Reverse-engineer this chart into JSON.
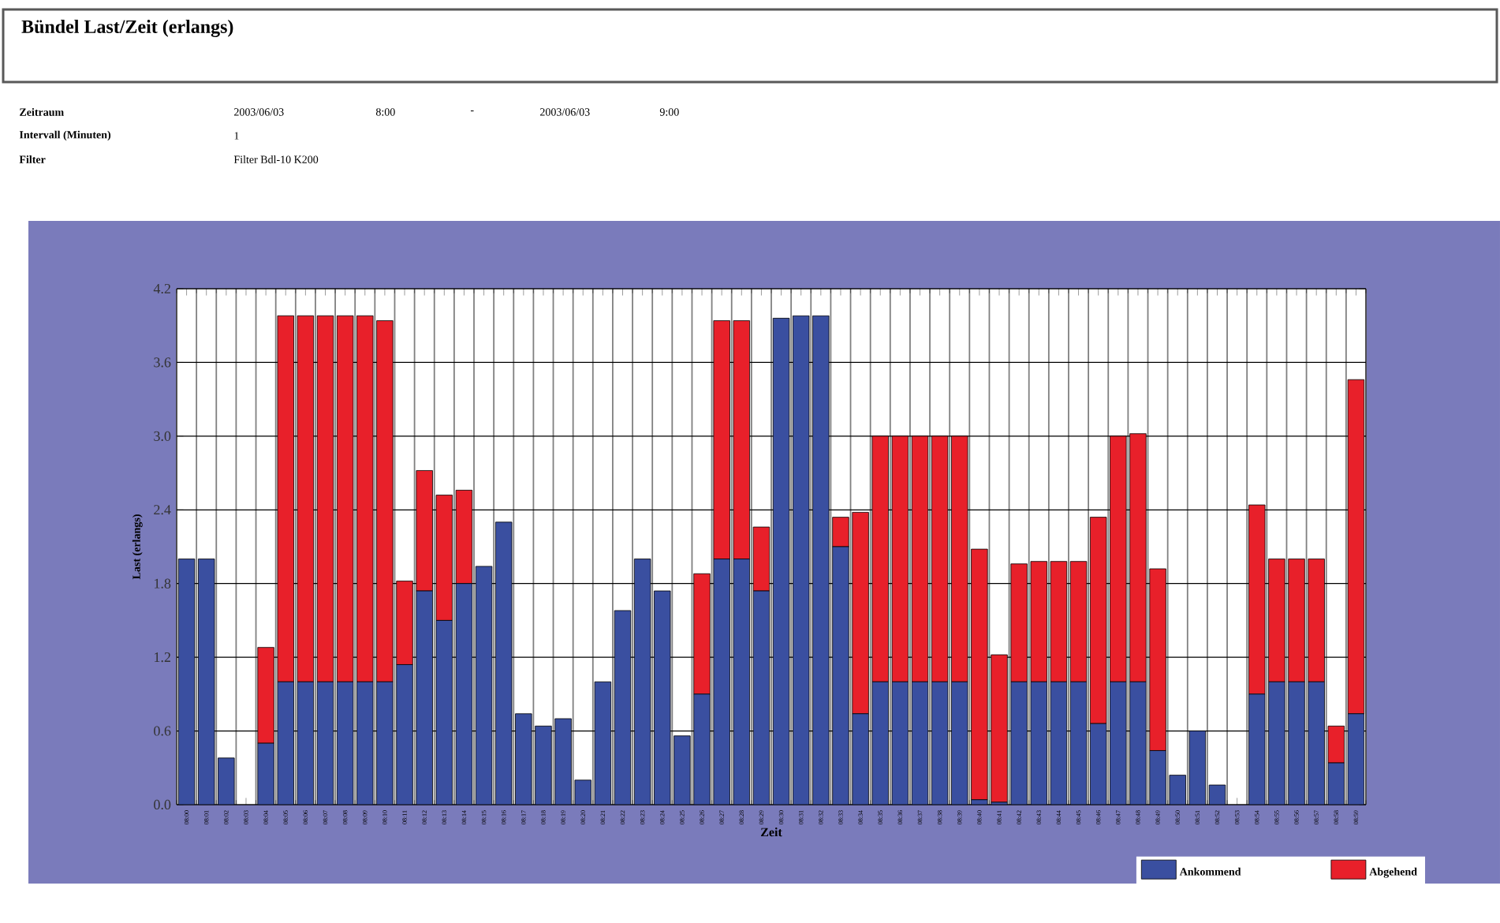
{
  "chart_data": {
    "type": "bar",
    "title": "Bündel Last/Zeit (erlangs)",
    "annotations": [
      "Zeitraum",
      "2003/06/03",
      "8:00",
      "-",
      "2003/06/03",
      "9:00",
      "Intervall (Minuten)",
      "1",
      "Filter",
      "Filter Bdl-10 K200"
    ],
    "xlabel": "Zeit",
    "ylabel": "Last (erlangs)",
    "categories": [
      "08:00",
      "08:01",
      "08:02",
      "08:03",
      "08:04",
      "08:05",
      "08:06",
      "08:07",
      "08:08",
      "08:09",
      "08:10",
      "08:11",
      "08:12",
      "08:13",
      "08:14",
      "08:15",
      "08:16",
      "08:17",
      "08:18",
      "08:19",
      "08:20",
      "08:21",
      "08:22",
      "08:23",
      "08:24",
      "08:25",
      "08:26",
      "08:27",
      "08:28",
      "08:29",
      "08:30",
      "08:31",
      "08:32",
      "08:33",
      "08:34",
      "08:35",
      "08:36",
      "08:37",
      "08:38",
      "08:39",
      "08:40",
      "08:41",
      "08:42",
      "08:43",
      "08:44",
      "08:45",
      "08:46",
      "08:47",
      "08:48",
      "08:49",
      "08:50",
      "08:51",
      "08:52",
      "08:53",
      "08:54",
      "08:55",
      "08:56",
      "08:57",
      "08:58",
      "08:59"
    ],
    "stacked": true,
    "series": [
      {
        "name": "Ankommend",
        "color": "#3a4fa0",
        "values": [
          2.0,
          2.0,
          0.38,
          0,
          0.5,
          1.0,
          1.0,
          1.0,
          1.0,
          1.0,
          1.0,
          1.14,
          1.74,
          1.5,
          1.8,
          1.94,
          2.3,
          0.74,
          0.64,
          0.7,
          0.2,
          1.0,
          1.58,
          2.0,
          1.74,
          0.56,
          0.9,
          2.0,
          2.0,
          1.74,
          3.96,
          3.98,
          3.98,
          2.1,
          0.74,
          1.0,
          1.0,
          1.0,
          1.0,
          1.0,
          0.04,
          0.02,
          1.0,
          1.0,
          1.0,
          1.0,
          0.66,
          1.0,
          1.0,
          0.44,
          0.24,
          0.6,
          0.16,
          0,
          0.9,
          1.0,
          1.0,
          1.0,
          0.34,
          0.74
        ]
      },
      {
        "name": "Abgehend",
        "color": "#e8202a",
        "values": [
          0,
          0,
          0,
          0,
          0.78,
          2.98,
          2.98,
          2.98,
          2.98,
          2.98,
          2.94,
          0.68,
          0.98,
          1.02,
          0.76,
          0,
          0,
          0,
          0,
          0,
          0,
          0,
          0,
          0,
          0,
          0,
          0.98,
          1.94,
          1.94,
          0.52,
          0,
          0,
          0,
          0.24,
          1.64,
          2.0,
          2.0,
          2.0,
          2.0,
          2.0,
          2.04,
          1.2,
          0.96,
          0.98,
          0.98,
          0.98,
          1.68,
          2.0,
          2.02,
          1.48,
          0,
          0,
          0,
          0,
          1.54,
          1.0,
          1.0,
          1.0,
          0.3,
          2.72
        ]
      }
    ],
    "ylim": [
      0,
      4.2
    ],
    "yticks": [
      {
        "value": 0,
        "label": "0.0"
      },
      {
        "value": 0.6,
        "label": "0.6"
      },
      {
        "value": 1.2,
        "label": "1.2"
      },
      {
        "value": 1.8,
        "label": "1.8"
      },
      {
        "value": 2.4,
        "label": "2.4"
      },
      {
        "value": 3.0,
        "label": "3.0"
      },
      {
        "value": 3.6,
        "label": "3.6"
      },
      {
        "value": 4.2,
        "label": "4.2"
      }
    ],
    "grid": true,
    "legend": "bottom right"
  }
}
